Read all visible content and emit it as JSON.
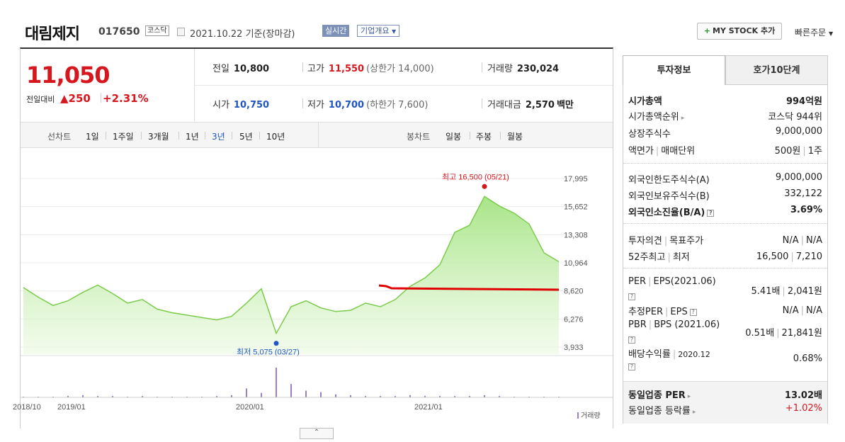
{
  "header": {
    "company": "대림제지",
    "code": "017650",
    "market_badge": "코스닥",
    "date": "2021.10.22 기준(장마감)",
    "live_badge": "실시간",
    "corp_info": "기업개요",
    "mystock_button": "MY STOCK 추가",
    "quick_order": "빠른주문"
  },
  "price": {
    "current": "11,050",
    "diff_label": "전일대비",
    "diff_value": "▲250",
    "diff_pct": "+2.31%"
  },
  "quote": {
    "prev_label": "전일",
    "prev_value": "10,800",
    "high_label": "고가",
    "high_value": "11,550",
    "upper_limit": "(상한가 14,000)",
    "volume_label": "거래량",
    "volume_value": "230,024",
    "open_label": "시가",
    "open_value": "10,750",
    "low_label": "저가",
    "low_value": "10,700",
    "lower_limit": "(하한가 7,600)",
    "amount_label": "거래대금",
    "amount_value": "2,570",
    "amount_unit": "백만"
  },
  "chart_tabs": {
    "line_label": "선차트",
    "line_periods": [
      "1일",
      "1주일",
      "3개월",
      "1년",
      "3년",
      "5년",
      "10년"
    ],
    "selected": "3년",
    "candle_label": "봉차트",
    "candle_periods": [
      "일봉",
      "주봉",
      "월봉"
    ]
  },
  "chart_data": {
    "type": "area",
    "yticks": [
      "17,995",
      "15,652",
      "13,308",
      "10,964",
      "8,620",
      "6,276",
      "3,933"
    ],
    "ylim": [
      3933,
      17995
    ],
    "xticks": [
      "2018/10",
      "2019/01",
      "2020/01",
      "2021/01"
    ],
    "high_label": "최고 16,500 (05/21)",
    "low_label": "최저 5,075 (03/27)",
    "volume_legend": "거래량",
    "price_series": [
      {
        "x": "2018/10",
        "y": 8900
      },
      {
        "x": "2018/11",
        "y": 8100
      },
      {
        "x": "2018/12",
        "y": 7400
      },
      {
        "x": "2019/01",
        "y": 7800
      },
      {
        "x": "2019/02",
        "y": 8500
      },
      {
        "x": "2019/03",
        "y": 9100
      },
      {
        "x": "2019/04",
        "y": 8400
      },
      {
        "x": "2019/05",
        "y": 7600
      },
      {
        "x": "2019/06",
        "y": 7900
      },
      {
        "x": "2019/07",
        "y": 7100
      },
      {
        "x": "2019/08",
        "y": 6800
      },
      {
        "x": "2019/09",
        "y": 6600
      },
      {
        "x": "2019/10",
        "y": 6400
      },
      {
        "x": "2019/11",
        "y": 6200
      },
      {
        "x": "2019/12",
        "y": 6500
      },
      {
        "x": "2020/01",
        "y": 7600
      },
      {
        "x": "2020/02",
        "y": 8800
      },
      {
        "x": "2020/03",
        "y": 5075
      },
      {
        "x": "2020/04",
        "y": 7300
      },
      {
        "x": "2020/05",
        "y": 7800
      },
      {
        "x": "2020/06",
        "y": 7200
      },
      {
        "x": "2020/07",
        "y": 6900
      },
      {
        "x": "2020/08",
        "y": 7000
      },
      {
        "x": "2020/09",
        "y": 7600
      },
      {
        "x": "2020/10",
        "y": 7300
      },
      {
        "x": "2020/11",
        "y": 7900
      },
      {
        "x": "2020/12",
        "y": 9000
      },
      {
        "x": "2021/01",
        "y": 9700
      },
      {
        "x": "2021/02",
        "y": 10800
      },
      {
        "x": "2021/03",
        "y": 13500
      },
      {
        "x": "2021/04",
        "y": 14100
      },
      {
        "x": "2021/05",
        "y": 16500
      },
      {
        "x": "2021/06",
        "y": 15700
      },
      {
        "x": "2021/07",
        "y": 15100
      },
      {
        "x": "2021/08",
        "y": 14200
      },
      {
        "x": "2021/09",
        "y": 11800
      },
      {
        "x": "2021/10",
        "y": 11050
      }
    ],
    "volume_bars": [
      1,
      1,
      1,
      2,
      3,
      2,
      2,
      1,
      2,
      1,
      1,
      1,
      1,
      2,
      3,
      12,
      6,
      40,
      18,
      9,
      7,
      4,
      3,
      2,
      2,
      2,
      3,
      2,
      2,
      2,
      2,
      3,
      2,
      1,
      1,
      1,
      1
    ]
  },
  "info_panel": {
    "tab_active": "투자정보",
    "tab_other": "호가10단계",
    "market_cap_label": "시가총액",
    "market_cap_value": "994억원",
    "market_cap_rank_label": "시가총액순위",
    "market_cap_rank_value": "코스닥 944위",
    "listed_shares_label": "상장주식수",
    "listed_shares_value": "9,000,000",
    "par_label": "액면가",
    "trade_unit_label": "매매단위",
    "par_value": "500원",
    "trade_unit_value": "1주",
    "foreign_limit_label": "외국인한도주식수(A)",
    "foreign_limit_value": "9,000,000",
    "foreign_hold_label": "외국인보유주식수(B)",
    "foreign_hold_value": "332,122",
    "foreign_ratio_label": "외국인소진율(B/A)",
    "foreign_ratio_value": "3.69%",
    "opinion_label": "투자의견",
    "target_label": "목표주가",
    "opinion_value": "N/A",
    "target_value": "N/A",
    "w52_high_label": "52주최고",
    "w52_low_label": "최저",
    "w52_high_value": "16,500",
    "w52_low_value": "7,210",
    "per_label": "PER",
    "eps_label": "EPS(2021.06)",
    "per_value": "5.41배",
    "eps_value": "2,041원",
    "est_per_label": "추정PER",
    "est_eps_label": "EPS",
    "est_per_value": "N/A",
    "est_eps_value": "N/A",
    "pbr_label": "PBR",
    "bps_label": "BPS (2021.06)",
    "pbr_value": "0.51배",
    "bps_value": "21,841원",
    "dividend_label": "배당수익률",
    "dividend_year": "2020.12",
    "dividend_value": "0.68%",
    "sector_per_label": "동일업종 PER",
    "sector_per_value": "13.02배",
    "sector_change_label": "동일업종 등락률",
    "sector_change_value": "+1.02%",
    "help_glyph": "?"
  },
  "expander": "⌃"
}
